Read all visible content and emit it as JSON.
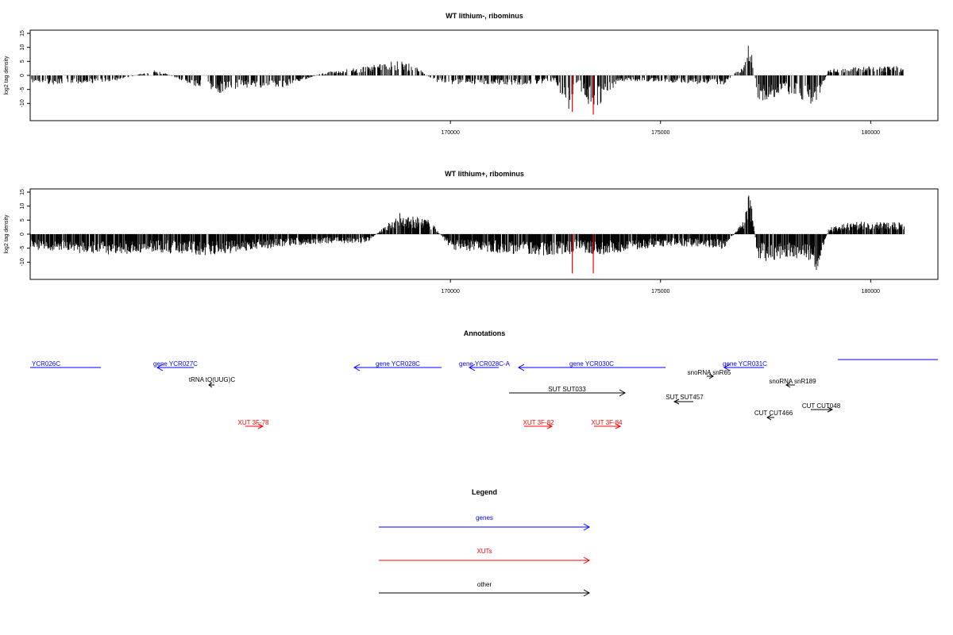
{
  "chart_data": [
    {
      "type": "bar",
      "title": "WT lithium-, ribominus",
      "ylabel": "log2 tag density",
      "xlabel": "",
      "xlim": [
        160000,
        181600
      ],
      "ylim": [
        -15,
        15
      ],
      "grid": false,
      "yticks": [
        "15",
        "10",
        "5",
        "0",
        "-5",
        "-10"
      ],
      "xticks": [
        "170000",
        "175000",
        "180000"
      ],
      "highlight_color": "#ff0000",
      "bar_color": "#000000",
      "x": [
        160000,
        161000,
        162000,
        163000,
        164000,
        164500,
        165000,
        166000,
        167000,
        168000,
        168800,
        169000,
        169200,
        169500,
        169800,
        170000,
        171000,
        172000,
        172500,
        172800,
        173000,
        173400,
        174000,
        175000,
        176000,
        176500,
        177000,
        177100,
        177200,
        177300,
        177500,
        178000,
        178500,
        178700,
        178800,
        179000,
        179500,
        180000,
        180800
      ],
      "values": [
        -3,
        -3,
        -2,
        2,
        -4,
        -6,
        -4,
        -4,
        1,
        3,
        5,
        4,
        3,
        -1,
        -3,
        -3,
        -3,
        -3,
        -2,
        -12,
        -3,
        -12,
        -2,
        -2,
        -3,
        -3,
        4,
        12,
        5,
        -8,
        -9,
        -6,
        -9,
        -11,
        -6,
        2,
        3,
        3,
        3
      ],
      "highlight_bars": [
        {
          "x": 172900,
          "value": -13
        },
        {
          "x": 173400,
          "value": -14
        }
      ]
    },
    {
      "type": "bar",
      "title": "WT lithium+, ribominus",
      "ylabel": "log2 tag density",
      "xlabel": "",
      "xlim": [
        160000,
        181600
      ],
      "ylim": [
        -15,
        15
      ],
      "grid": false,
      "yticks": [
        "15",
        "10",
        "5",
        "0",
        "-5",
        "-10"
      ],
      "xticks": [
        "170000",
        "175000",
        "180000"
      ],
      "highlight_color": "#ff0000",
      "bar_color": "#000000",
      "x": [
        160000,
        161000,
        162000,
        163000,
        164000,
        165000,
        166000,
        167000,
        168000,
        168800,
        169000,
        169500,
        170000,
        171000,
        172000,
        172800,
        173000,
        173400,
        174000,
        175000,
        176000,
        176500,
        177000,
        177100,
        177200,
        177300,
        177500,
        178000,
        178500,
        178700,
        178800,
        179000,
        179500,
        180000,
        180800
      ],
      "values": [
        -5,
        -6,
        -7,
        -6,
        -7,
        -6,
        -4,
        -3,
        -3,
        7,
        6,
        5,
        -5,
        -6,
        -7,
        -7,
        -5,
        -7,
        -6,
        -4,
        -4,
        -5,
        5,
        14,
        6,
        -8,
        -9,
        -8,
        -8,
        -13,
        -8,
        2,
        4,
        4,
        4
      ],
      "highlight_bars": [
        {
          "x": 172900,
          "value": -14
        },
        {
          "x": 173400,
          "value": -14
        }
      ]
    }
  ],
  "annotations": {
    "title": "Annotations",
    "genes_color": "#0000ff",
    "xut_color": "#ff0000",
    "other_color": "#000000",
    "items": [
      {
        "label": "YCR026C",
        "category": "genes"
      },
      {
        "label": "gene YCR027C",
        "category": "genes"
      },
      {
        "label": "gene YCR028C",
        "category": "genes"
      },
      {
        "label": "gene YCR028C-A",
        "category": "genes"
      },
      {
        "label": "gene YCR030C",
        "category": "genes"
      },
      {
        "label": "gene YCR031C",
        "category": "genes"
      },
      {
        "label": "tRNA tQ(UUG)C",
        "category": "other"
      },
      {
        "label": "SUT SUT033",
        "category": "other"
      },
      {
        "label": "snoRNA snR65",
        "category": "other"
      },
      {
        "label": "SUT SUT457",
        "category": "other"
      },
      {
        "label": "snoRNA snR189",
        "category": "other"
      },
      {
        "label": "CUT CUT048",
        "category": "other"
      },
      {
        "label": "CUT CUT466",
        "category": "other"
      },
      {
        "label": "XUT 3F-78",
        "category": "xut"
      },
      {
        "label": "XUT 3F-82",
        "category": "xut"
      },
      {
        "label": "XUT 3F-84",
        "category": "xut"
      }
    ]
  },
  "legend": {
    "title": "Legend",
    "items": [
      {
        "label": "genes",
        "color": "#0000ff"
      },
      {
        "label": "XUTs",
        "color": "#ff0000"
      },
      {
        "label": "other",
        "color": "#000000"
      }
    ]
  }
}
